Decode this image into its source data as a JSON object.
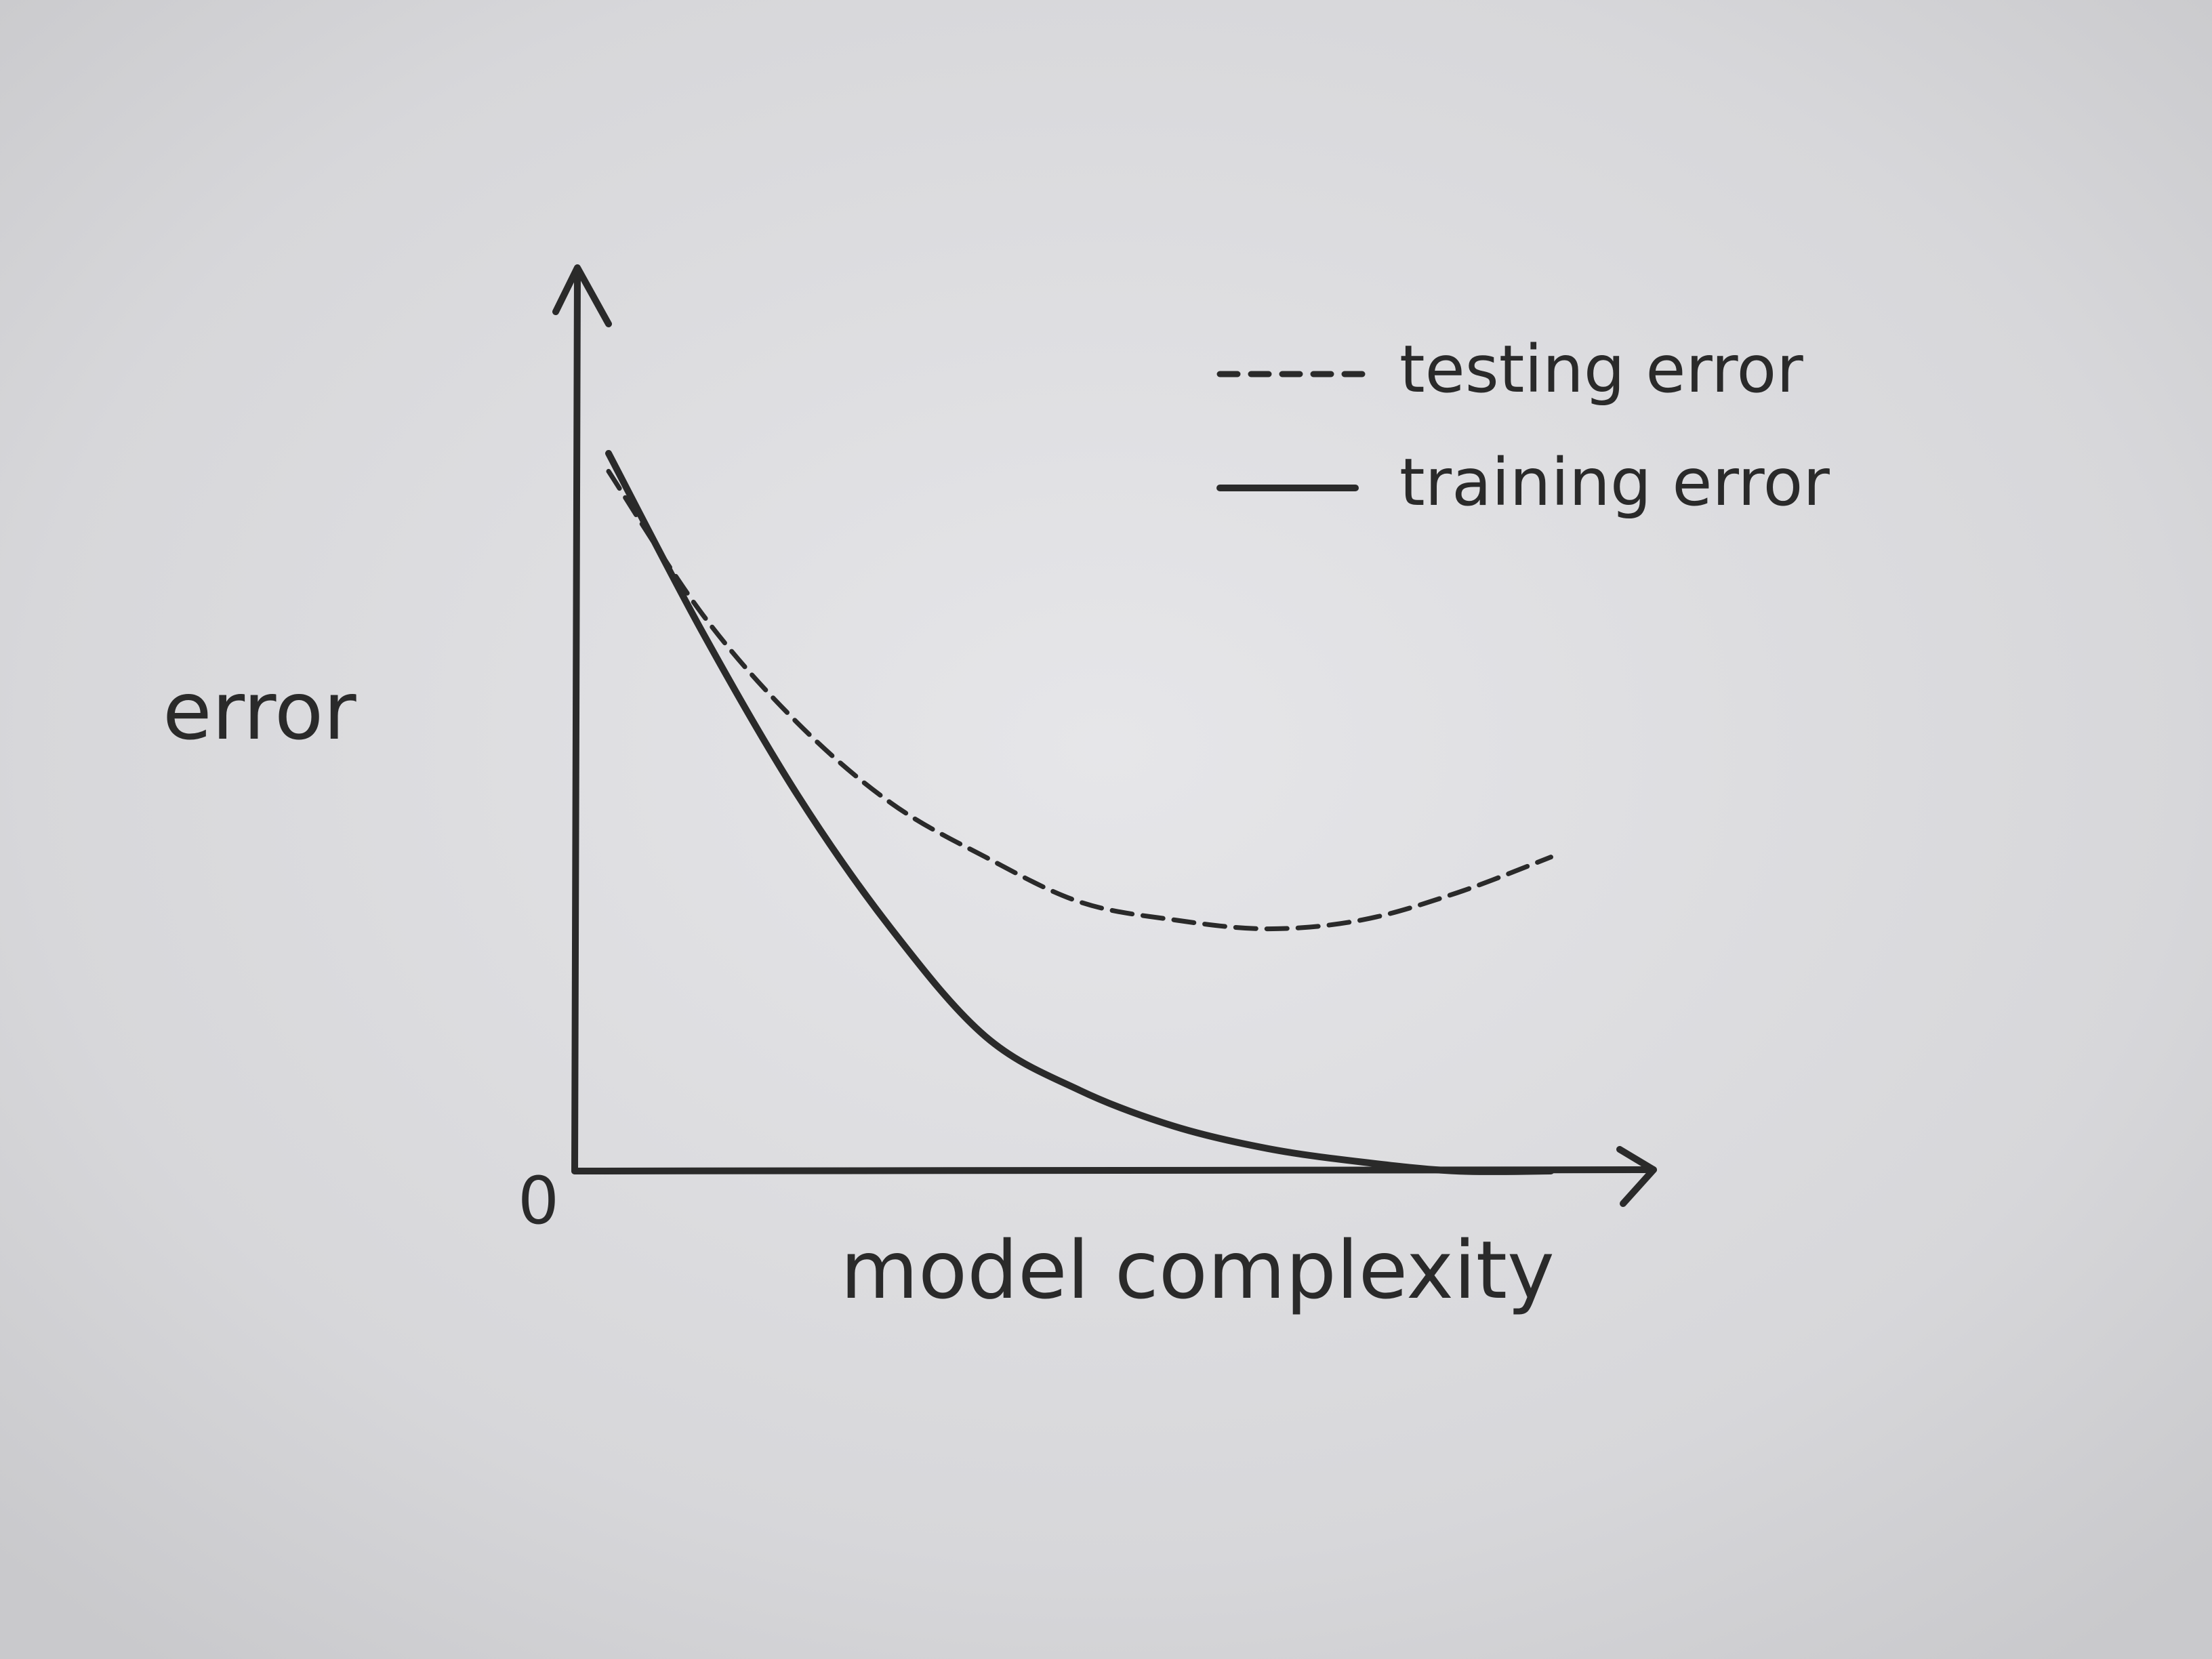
{
  "chart_data": {
    "type": "line",
    "ylabel": "error",
    "xlabel": "model complexity",
    "origin_label": "0",
    "x": [
      0,
      0.1,
      0.2,
      0.3,
      0.4,
      0.5,
      0.6,
      0.7,
      0.8,
      0.9,
      1.0
    ],
    "series": [
      {
        "name": "testing error",
        "style": "dashed",
        "values": [
          0.78,
          0.62,
          0.5,
          0.41,
          0.35,
          0.3,
          0.28,
          0.27,
          0.28,
          0.31,
          0.35
        ]
      },
      {
        "name": "training error",
        "style": "solid",
        "values": [
          0.8,
          0.6,
          0.42,
          0.27,
          0.15,
          0.09,
          0.05,
          0.025,
          0.01,
          0.0,
          0.0
        ]
      }
    ],
    "xlim": [
      0,
      1.05
    ],
    "ylim": [
      0,
      1.05
    ],
    "grid": false,
    "legend_position": "top-right",
    "colors": {
      "ink": "#2a2a2a",
      "paper": "#d9d9dc"
    }
  }
}
